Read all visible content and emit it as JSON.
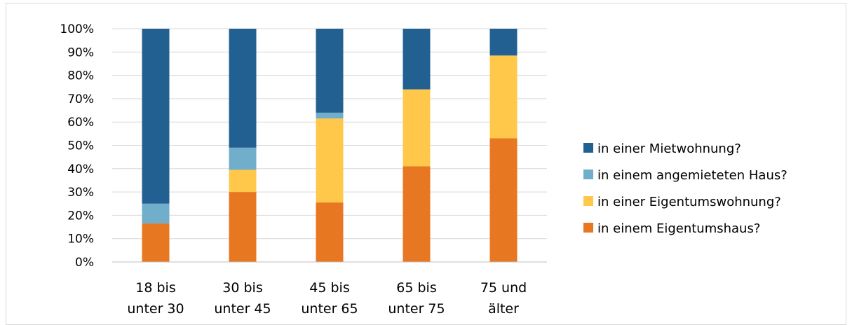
{
  "chart_data": {
    "type": "bar",
    "stacked": true,
    "percent": true,
    "title": "",
    "xlabel": "",
    "ylabel": "",
    "ylim": [
      0,
      100
    ],
    "yticks": [
      "0%",
      "10%",
      "20%",
      "30%",
      "40%",
      "50%",
      "60%",
      "70%",
      "80%",
      "90%",
      "100%"
    ],
    "categories": [
      [
        "18 bis",
        "unter 30"
      ],
      [
        "30 bis",
        "unter 45"
      ],
      [
        "45 bis",
        "unter 65"
      ],
      [
        "65 bis",
        "unter 75"
      ],
      [
        "75 und",
        "älter"
      ]
    ],
    "series": [
      {
        "name": "in einem Eigentumshaus?",
        "color": "#E87722",
        "values": [
          16.5,
          30,
          25.5,
          41,
          53
        ]
      },
      {
        "name": "in einer Eigentumswohnung?",
        "color": "#FFC84A",
        "values": [
          0,
          9.5,
          36,
          33,
          35.5
        ]
      },
      {
        "name": "in einem angemieteten Haus?",
        "color": "#71AECB",
        "values": [
          8.5,
          9.5,
          2.5,
          0,
          0
        ]
      },
      {
        "name": "in einer Mietwohnung?",
        "color": "#236092",
        "values": [
          75,
          51,
          36,
          26,
          11.5
        ]
      }
    ],
    "legend_order": [
      3,
      2,
      1,
      0
    ],
    "legend_position": "right",
    "grid": true
  }
}
